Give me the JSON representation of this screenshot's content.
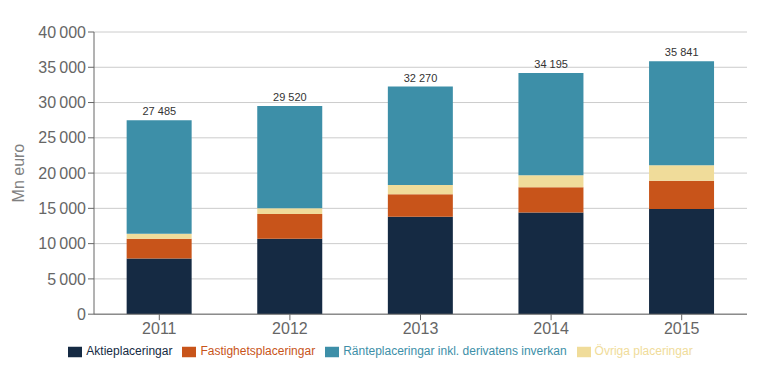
{
  "chart_data": {
    "type": "bar",
    "stacked": true,
    "ylabel": "Mn euro",
    "categories": [
      "2011",
      "2012",
      "2013",
      "2014",
      "2015"
    ],
    "series": [
      {
        "name": "Aktieplaceringar",
        "color": "#152a43",
        "values": [
          7900,
          10700,
          13800,
          14400,
          14900
        ]
      },
      {
        "name": "Fastighetsplaceringar",
        "color": "#c8541a",
        "values": [
          2800,
          3500,
          3200,
          3600,
          4000
        ]
      },
      {
        "name": "Övriga placeringar",
        "color": "#f0dc9a",
        "values": [
          700,
          800,
          1300,
          1700,
          2200
        ]
      },
      {
        "name": "Ränteplaceringar inkl. derivatens inverkan",
        "color": "#3d8fa8",
        "values": [
          16085,
          14520,
          13970,
          14495,
          14741
        ]
      }
    ],
    "totals": [
      27485,
      29520,
      32270,
      34195,
      35841
    ],
    "total_labels": [
      "27 485",
      "29 520",
      "32 270",
      "34 195",
      "35 841"
    ],
    "ylim": [
      0,
      40000
    ],
    "yticks": [
      0,
      {
        "value": 5000,
        "label": "5 000"
      },
      {
        "value": 10000,
        "label": "10 000"
      },
      {
        "value": 15000,
        "label": "15 000"
      },
      {
        "value": 20000,
        "label": "20 000"
      },
      {
        "value": 25000,
        "label": "25 000"
      },
      {
        "value": 30000,
        "label": "30 000"
      },
      {
        "value": 35000,
        "label": "35 000"
      },
      {
        "value": 40000,
        "label": "40 000"
      }
    ],
    "grid": true,
    "legend": "bottom"
  }
}
